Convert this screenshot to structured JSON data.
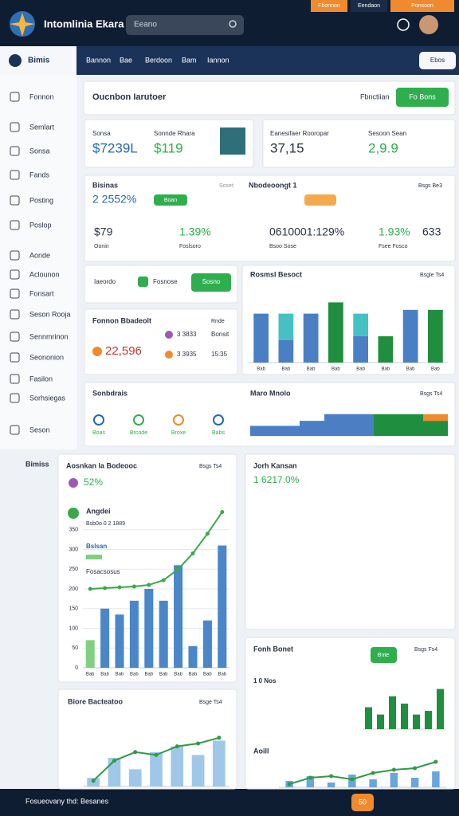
{
  "header": {
    "title": "Intomlinia Ekara",
    "search": "Eeano",
    "tabs": [
      "Fbonnon",
      "Eendaon",
      "Ponsoon"
    ]
  },
  "nav": {
    "brand": "Bimis",
    "tabs": [
      "Bannon",
      "Bae",
      "Berdoon",
      "Bam",
      "Iannon"
    ],
    "button": "Ebos"
  },
  "sidebar": {
    "items": [
      "Fonnon",
      "Semlart",
      "Sonsa",
      "Fands",
      "Posting",
      "Poslop",
      "Aonde",
      "Aclounon",
      "Fonsart",
      "Seson Rooja",
      "Sennmrinon",
      "Seononion",
      "Fasilon",
      "Sorhsiegas",
      "Seson"
    ],
    "footer": "Bimiss"
  },
  "toolbar": {
    "title": "Oucnbon Iarutoer",
    "label": "Fbnctiian",
    "button": "Fo Bons"
  },
  "kpis": [
    {
      "label": "Sonsa",
      "value": "$7239L"
    },
    {
      "label": "Sonnde Rhara",
      "value": "$119"
    },
    {
      "label": "Eanesifaer Rooropar",
      "value": "37,15"
    },
    {
      "label": "Sesoon Sean",
      "value": "2,9.9"
    }
  ],
  "summary": {
    "title": "Bisinas",
    "value": "2 2552%",
    "chip": "Boan",
    "note": "Soset",
    "title2": "Nbodeoongt 1",
    "link": "Bsgs Be3",
    "metrics": [
      {
        "value": "$79",
        "label": "Oonin"
      },
      {
        "value": "1.39%",
        "label": "Foslsoro"
      },
      {
        "value": "0610001:129%",
        "label": "Bsoo Sose"
      },
      {
        "value": "1.93%",
        "label": "Fsee Fosco"
      },
      {
        "value": "633"
      }
    ]
  },
  "actions": {
    "label": "Iaeordo",
    "chip": "Fosnose",
    "button": "Sosno"
  },
  "list": {
    "title": "Fonnon Bbadeolt",
    "note": "Rnde",
    "total": "22,596",
    "rows": [
      {
        "label": "3 3833",
        "value": "Bonsit"
      },
      {
        "label": "3 3935",
        "value": "15:35"
      }
    ]
  },
  "statuses": {
    "title": "Sonbdrais",
    "items": [
      "Boas",
      "Brcode",
      "Broxe",
      "Babs"
    ]
  },
  "map": {
    "title": "Jorh Kansan",
    "value": "1 6217.0%"
  },
  "charts": [
    {
      "type": "bar",
      "title": "Rosmsl Besoct",
      "link": "Bsgle Ts4",
      "stacked": true,
      "ylim": [
        0,
        90
      ],
      "categories": [
        "Bab",
        "Bab",
        "Bab",
        "Bab",
        "Bab",
        "Bab",
        "Bab",
        "Bab"
      ],
      "series": [
        {
          "color": "#4a7fc4",
          "values": [
            65,
            30,
            65,
            null,
            35,
            null,
            70,
            null
          ]
        },
        {
          "color": "#45c1c4",
          "values": [
            null,
            35,
            null,
            null,
            30,
            null,
            null,
            null
          ]
        },
        {
          "color": "#1f8f3f",
          "values": [
            null,
            null,
            null,
            80,
            null,
            35,
            null,
            70
          ]
        }
      ]
    },
    {
      "type": "bar",
      "title": "Maro Mnolo",
      "link": "Bsgs Ts4",
      "stacked": true,
      "ylim": [
        0,
        40
      ],
      "gap": 0,
      "categories": [
        null,
        null,
        null,
        null,
        null,
        null,
        null,
        null
      ],
      "series": [
        {
          "color": "#4a7fc4",
          "values": [
            12,
            12,
            18,
            26,
            26,
            null,
            null,
            null
          ]
        },
        {
          "color": "#1f8f3f",
          "values": [
            null,
            null,
            null,
            null,
            null,
            26,
            26,
            18
          ]
        },
        {
          "color": "#f08a2c",
          "values": [
            null,
            null,
            null,
            null,
            null,
            null,
            null,
            8
          ]
        }
      ]
    },
    {
      "type": "bar",
      "title": "Aosnkan Ia Bodeooc",
      "link": "Bsgs Ts4",
      "value": "52%",
      "label": "Angdei",
      "sub": "Bsb0o 0 2 1889",
      "legend": [
        "Bslsan",
        "Fosacsosus"
      ],
      "ylim": [
        0,
        400
      ],
      "yticks": [
        0,
        50,
        100,
        150,
        200,
        250,
        300,
        350
      ],
      "categories": [
        "Bab",
        "Bab",
        "Bab",
        "Bab",
        "Bab",
        "Bab",
        "Bab",
        "Bab",
        "Bab",
        "Bab"
      ],
      "series": [
        {
          "color": "#7fd17f",
          "values": [
            70,
            null,
            null,
            null,
            null,
            null,
            null,
            null,
            null,
            null
          ]
        },
        {
          "color": "#4a86c8",
          "values": [
            null,
            150,
            135,
            170,
            200,
            170,
            260,
            55,
            120,
            310
          ]
        },
        {
          "kind": "line",
          "color": "#3aa84a",
          "values": [
            200,
            202,
            204,
            206,
            210,
            222,
            250,
            290,
            340,
            395
          ]
        }
      ]
    },
    {
      "type": "bar",
      "title": "Biore Bacteatoo",
      "link": "Bsge Ts4",
      "ylim": [
        0,
        100
      ],
      "categories": [
        null,
        null,
        null,
        null,
        null,
        null,
        null
      ],
      "series": [
        {
          "color": "#9fc8e8",
          "values": [
            15,
            50,
            30,
            60,
            70,
            55,
            80
          ]
        },
        {
          "kind": "line",
          "color": "#2f9a45",
          "values": [
            10,
            45,
            60,
            55,
            70,
            75,
            85
          ]
        }
      ]
    },
    {
      "type": "bar",
      "title": "Fonh Bonet",
      "link": "Bsgs Fs4",
      "button": "Bnte",
      "caption": "1 0 Nos",
      "ylim": [
        0,
        60
      ],
      "categories": [
        null,
        null,
        null,
        null,
        null,
        null,
        null
      ],
      "series": [
        {
          "color": "#1f8f3f",
          "values": [
            30,
            20,
            45,
            35,
            20,
            25,
            55
          ]
        }
      ]
    },
    {
      "type": "line",
      "title": "Aoill",
      "ylim": [
        0,
        100
      ],
      "categories": [
        null,
        null,
        null,
        null,
        null,
        null,
        null,
        null
      ],
      "series": [
        {
          "color": "#6aa6da",
          "kind": "barlight",
          "values": [
            20,
            35,
            15,
            40,
            25,
            45,
            30,
            50
          ]
        },
        {
          "kind": "line",
          "color": "#2f9a45",
          "values": [
            10,
            30,
            35,
            25,
            45,
            55,
            60,
            80
          ]
        }
      ]
    }
  ],
  "footer": {
    "text": "Fosueovany thd: Besanes",
    "badge": "50"
  }
}
